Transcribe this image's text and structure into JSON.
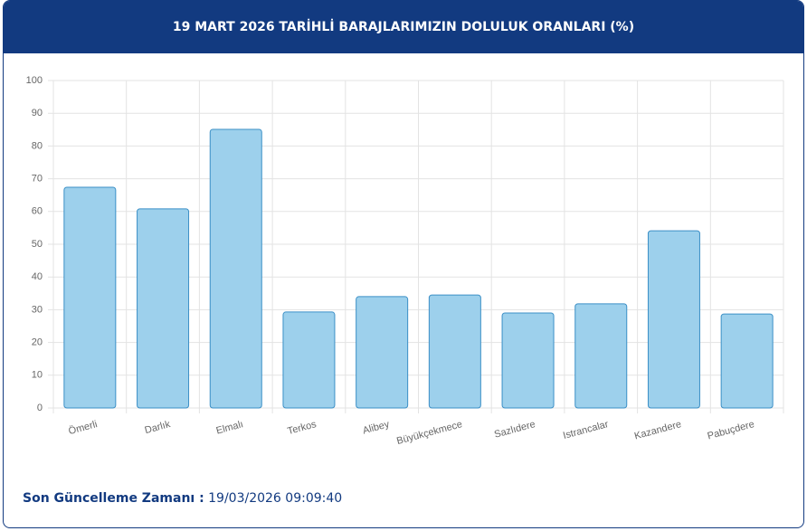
{
  "chart_data": {
    "type": "bar",
    "title": "19 MART 2026 TARİHLİ BARAJLARIMIZIN DOLULUK ORANLARI (%)",
    "categories": [
      "Ömerli",
      "Darlık",
      "Elmalı",
      "Terkos",
      "Alibey",
      "Büyükçekmece",
      "Sazlıdere",
      "Istrancalar",
      "Kazandere",
      "Pabuçdere"
    ],
    "values": [
      67.4,
      60.8,
      85.1,
      29.3,
      34.0,
      34.5,
      29.0,
      31.8,
      54.1,
      28.7
    ],
    "color": "#9dd0ec",
    "ylim": [
      0,
      100
    ],
    "yticks": [
      0,
      10,
      20,
      30,
      40,
      50,
      60,
      70,
      80,
      90,
      100
    ],
    "grid": true
  },
  "footer": {
    "label": "Son Güncelleme Zamanı :",
    "value": "19/03/2026 09:09:40"
  }
}
